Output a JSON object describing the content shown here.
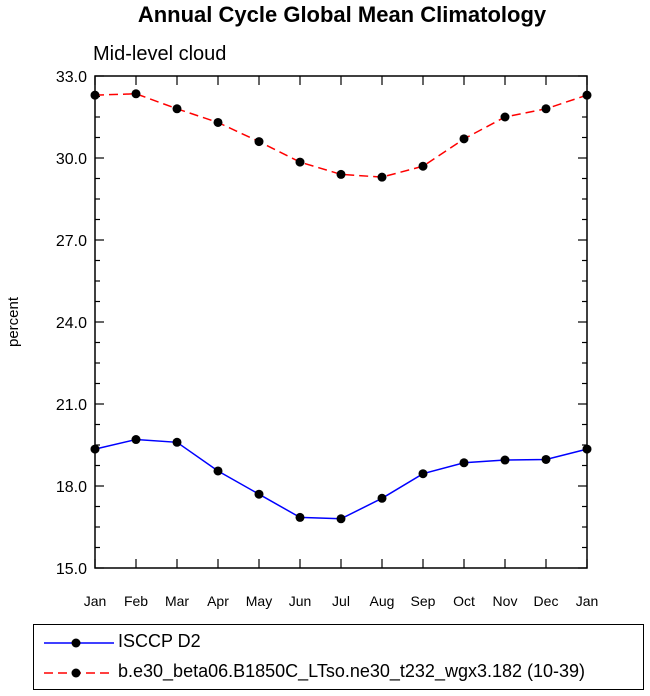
{
  "chart_data": {
    "type": "line",
    "title": "Annual Cycle Global Mean Climatology",
    "subtitle": "Mid-level cloud",
    "ylabel": "percent",
    "xlabel": "",
    "categories": [
      "Jan",
      "Feb",
      "Mar",
      "Apr",
      "May",
      "Jun",
      "Jul",
      "Aug",
      "Sep",
      "Oct",
      "Nov",
      "Dec",
      "Jan"
    ],
    "ylim": [
      15.0,
      33.0
    ],
    "yticks": [
      15.0,
      18.0,
      21.0,
      24.0,
      27.0,
      30.0,
      33.0
    ],
    "ytick_labels": [
      "15.0",
      "18.0",
      "21.0",
      "24.0",
      "27.0",
      "30.0",
      "33.0"
    ],
    "grid": false,
    "legend_placement": "bottom",
    "series": [
      {
        "name": "ISCCP D2",
        "color": "#0000ff",
        "style": "solid",
        "values": [
          19.35,
          19.7,
          19.6,
          18.55,
          17.7,
          16.85,
          16.8,
          17.55,
          18.45,
          18.85,
          18.95,
          18.97,
          19.35
        ]
      },
      {
        "name": "b.e30_beta06.B1850C_LTso.ne30_t232_wgx3.182 (10-39)",
        "color": "#ff0000",
        "style": "dashed",
        "values": [
          32.3,
          32.35,
          31.8,
          31.3,
          30.6,
          29.85,
          29.4,
          29.3,
          29.7,
          30.7,
          31.5,
          31.8,
          32.3
        ]
      }
    ]
  }
}
